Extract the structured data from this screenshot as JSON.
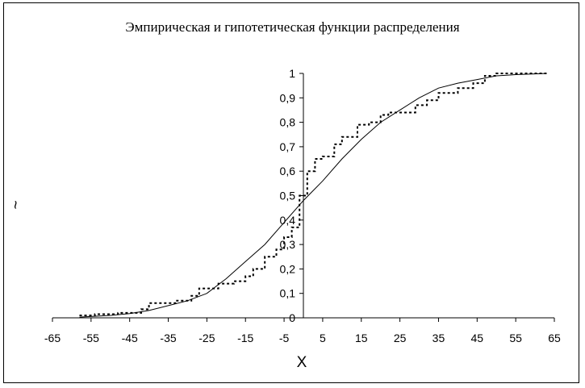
{
  "chart_data": {
    "type": "line",
    "title": "Эмпирическая и гипотетическая функции распределения",
    "xlabel": "X",
    "ylabel": "",
    "ylabel_glyph": "~",
    "xlim": [
      -65,
      65
    ],
    "ylim": [
      0,
      1
    ],
    "x_ticks": [
      -65,
      -55,
      -45,
      -35,
      -25,
      -15,
      -5,
      5,
      15,
      25,
      35,
      45,
      55,
      65
    ],
    "y_ticks": [
      "0",
      "0,1",
      "0,2",
      "0,3",
      "0,4",
      "0,5",
      "0,6",
      "0,7",
      "0,8",
      "0,9",
      "1"
    ],
    "grid": false,
    "legend": "none",
    "series": [
      {
        "style": "solid",
        "x": [
          -58,
          -50,
          -45,
          -40,
          -35,
          -30,
          -25,
          -20,
          -15,
          -10,
          -5,
          0,
          5,
          10,
          15,
          20,
          25,
          30,
          35,
          40,
          45,
          50,
          55,
          60,
          63
        ],
        "y": [
          0.003,
          0.01,
          0.017,
          0.03,
          0.05,
          0.07,
          0.1,
          0.16,
          0.23,
          0.3,
          0.39,
          0.48,
          0.56,
          0.65,
          0.73,
          0.8,
          0.85,
          0.9,
          0.94,
          0.96,
          0.975,
          0.99,
          0.995,
          0.998,
          1.0
        ]
      },
      {
        "style": "dotted",
        "x": [
          -58,
          -54,
          -54,
          -48,
          -48,
          -42,
          -42,
          -40,
          -40,
          -33,
          -33,
          -29,
          -29,
          -27,
          -27,
          -22,
          -22,
          -18,
          -18,
          -15,
          -15,
          -13,
          -13,
          -10,
          -10,
          -7,
          -7,
          -5,
          -5,
          -3,
          -3,
          -1,
          -1,
          1,
          1,
          3,
          3,
          5,
          5,
          8,
          8,
          10,
          10,
          14,
          14,
          17,
          17,
          20,
          20,
          22,
          22,
          25,
          25,
          29,
          29,
          32,
          32,
          35,
          35,
          40,
          40,
          44,
          44,
          47,
          47,
          50,
          50,
          63
        ],
        "y": [
          0.01,
          0.01,
          0.015,
          0.015,
          0.02,
          0.02,
          0.035,
          0.035,
          0.06,
          0.06,
          0.07,
          0.07,
          0.09,
          0.09,
          0.12,
          0.12,
          0.14,
          0.14,
          0.15,
          0.15,
          0.17,
          0.17,
          0.2,
          0.2,
          0.25,
          0.25,
          0.28,
          0.28,
          0.33,
          0.33,
          0.37,
          0.37,
          0.5,
          0.5,
          0.6,
          0.6,
          0.65,
          0.65,
          0.66,
          0.66,
          0.71,
          0.71,
          0.74,
          0.74,
          0.79,
          0.79,
          0.8,
          0.8,
          0.83,
          0.83,
          0.84,
          0.84,
          0.84,
          0.84,
          0.87,
          0.87,
          0.89,
          0.89,
          0.92,
          0.92,
          0.94,
          0.94,
          0.96,
          0.96,
          0.99,
          0.99,
          1.0,
          1.0
        ]
      }
    ]
  }
}
